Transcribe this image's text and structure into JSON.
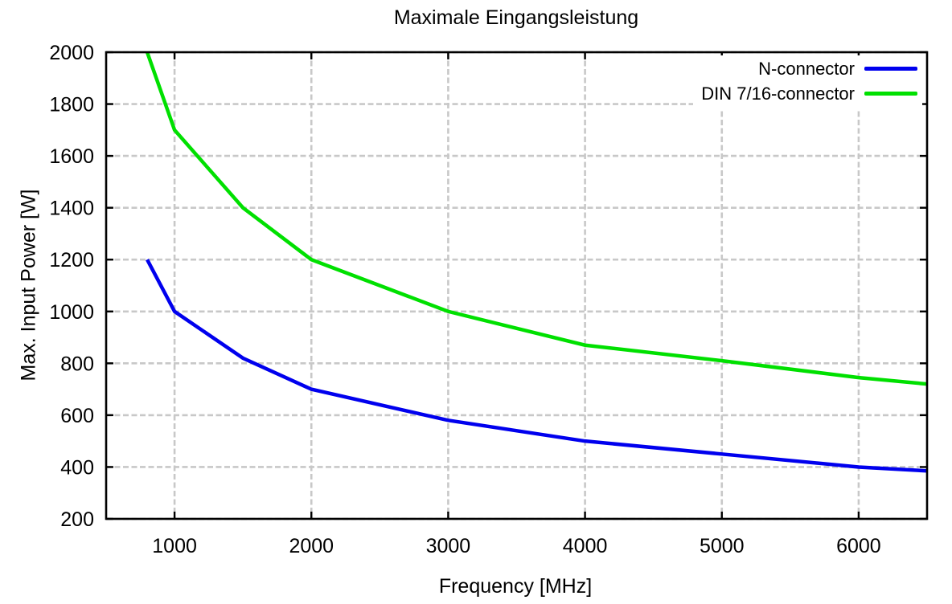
{
  "chart_data": {
    "type": "line",
    "title": "Maximale Eingangsleistung",
    "xlabel": "Frequency [MHz]",
    "ylabel": "Max. Input Power [W]",
    "xlim": [
      500,
      6500
    ],
    "ylim": [
      200,
      2000
    ],
    "x_ticks": [
      1000,
      2000,
      3000,
      4000,
      5000,
      6000
    ],
    "y_ticks": [
      200,
      400,
      600,
      800,
      1000,
      1200,
      1400,
      1600,
      1800,
      2000
    ],
    "grid": true,
    "grid_color": "#c8c8c8",
    "legend_position": "top-right",
    "x": [
      800,
      1000,
      1500,
      2000,
      3000,
      4000,
      5000,
      6000,
      6500
    ],
    "series": [
      {
        "name": "N-connector",
        "color": "#0000ee",
        "values": [
          1200,
          1000,
          820,
          700,
          580,
          500,
          450,
          400,
          385
        ]
      },
      {
        "name": "DIN 7/16-connector",
        "color": "#00e000",
        "values": [
          2000,
          1700,
          1400,
          1200,
          1000,
          870,
          810,
          745,
          720
        ]
      }
    ]
  }
}
